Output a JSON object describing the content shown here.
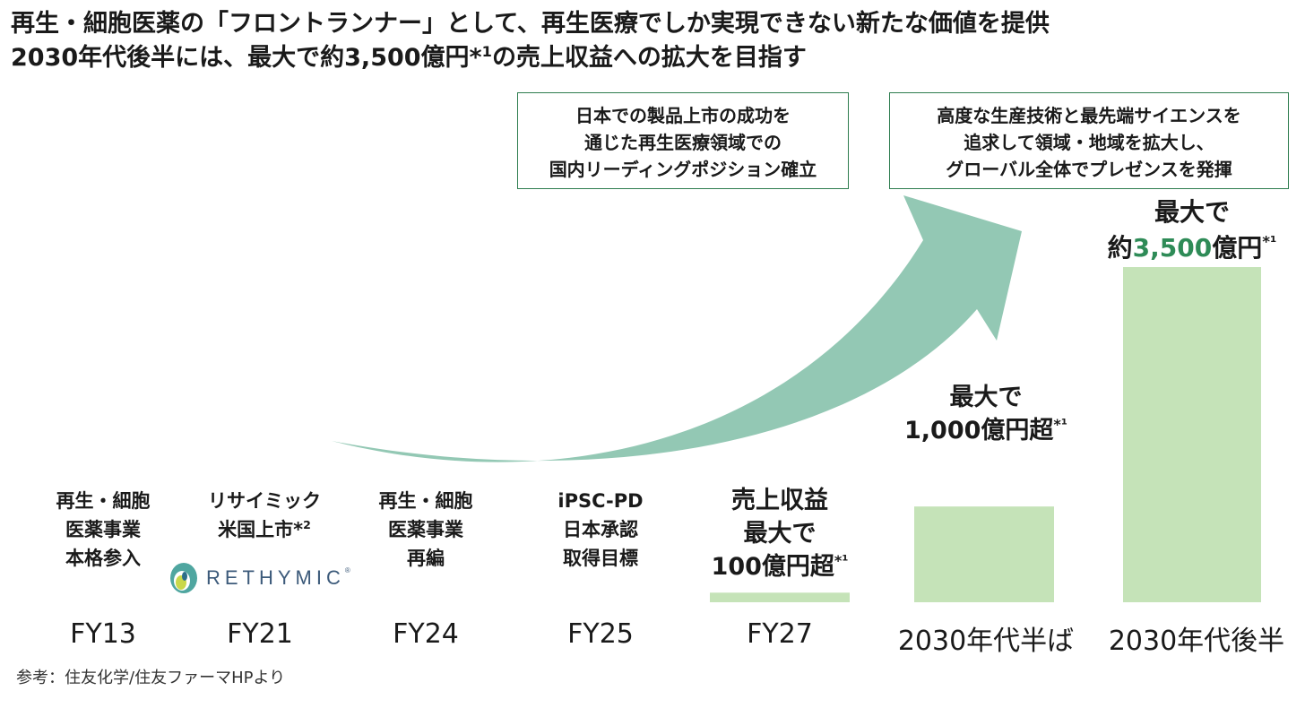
{
  "headline": {
    "line1": "再生・細胞医薬の「フロントランナー」として、再生医療でしか実現できない新たな価値を提供",
    "line2": "2030年代後半には、最大で約3,500億円*¹の売上収益への拡大を目指す"
  },
  "callouts": [
    {
      "lines": [
        "日本での製品上市の成功を",
        "通じた再生医療領域での",
        "国内リーディングポジション確立"
      ]
    },
    {
      "lines": [
        "高度な生産技術と最先端サイエンスを",
        "追求して領域・地域を拡大し、",
        "グローバル全体でプレゼンスを発揮"
      ]
    }
  ],
  "milestones": [
    {
      "lines": [
        "再生・細胞",
        "医薬事業",
        "本格参入"
      ]
    },
    {
      "lines": [
        "リサイミック",
        "米国上市*²"
      ]
    },
    {
      "lines": [
        "再生・細胞",
        "医薬事業",
        "再編"
      ]
    },
    {
      "lines": [
        "iPSC-PD",
        "日本承認",
        "取得目標"
      ]
    }
  ],
  "logo": {
    "name": "RETHYMIC",
    "mark": "®"
  },
  "value_labels": {
    "fy27": {
      "l1": "売上収益",
      "l2": "最大で",
      "l3a": "100億円超",
      "l3b": "*¹"
    },
    "mid2030": {
      "l1": "最大で",
      "l2a": "1,000億円超",
      "l2b": "*¹"
    },
    "late2030": {
      "l1": "最大で",
      "l2a": "約",
      "l2b": "3,500",
      "l2c": "億円",
      "l2d": "*¹"
    }
  },
  "chart_data": {
    "type": "bar",
    "categories": [
      "FY13",
      "FY21",
      "FY24",
      "FY25",
      "FY27",
      "2030年代半ば",
      "2030年代後半"
    ],
    "values": [
      null,
      null,
      null,
      null,
      100,
      1000,
      3500
    ],
    "ylabel": "",
    "unit": "億円",
    "ylim": [
      0,
      3500
    ],
    "bar_color": "#c5e3b8",
    "arrow_color": "#93c8b4",
    "accent_color": "#2e8b57"
  },
  "footnote": "参考：住友化学/住友ファーマHPより"
}
